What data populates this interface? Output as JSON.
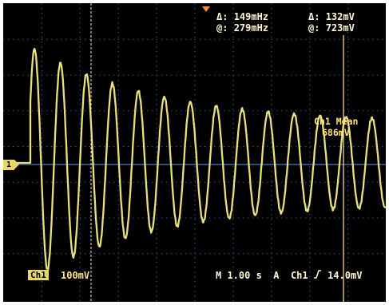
{
  "measurements": {
    "freq_delta_label": "Δ:",
    "freq_delta_value": "149mHz",
    "freq_at_label": "@:",
    "freq_at_value": "279mHz",
    "volt_delta_label": "Δ:",
    "volt_delta_value": "132mV",
    "volt_at_label": "@:",
    "volt_at_value": "723mV"
  },
  "mean_readout": {
    "title": "Ch1 Mean",
    "value": "686mV"
  },
  "channel": {
    "badge": "Ch1",
    "scale": "100mV",
    "ground_marker": "1"
  },
  "status_bar": {
    "timebase": "M 1.00 s",
    "trigger_mode": "A",
    "trigger_source": "Ch1",
    "trigger_slope_icon": "rising-edge-icon",
    "trigger_level": "14.0mV"
  },
  "colors": {
    "trace": "#e8e07a",
    "grid": "#3d5a9a",
    "text": "#fff7d6",
    "background": "#000000"
  }
}
